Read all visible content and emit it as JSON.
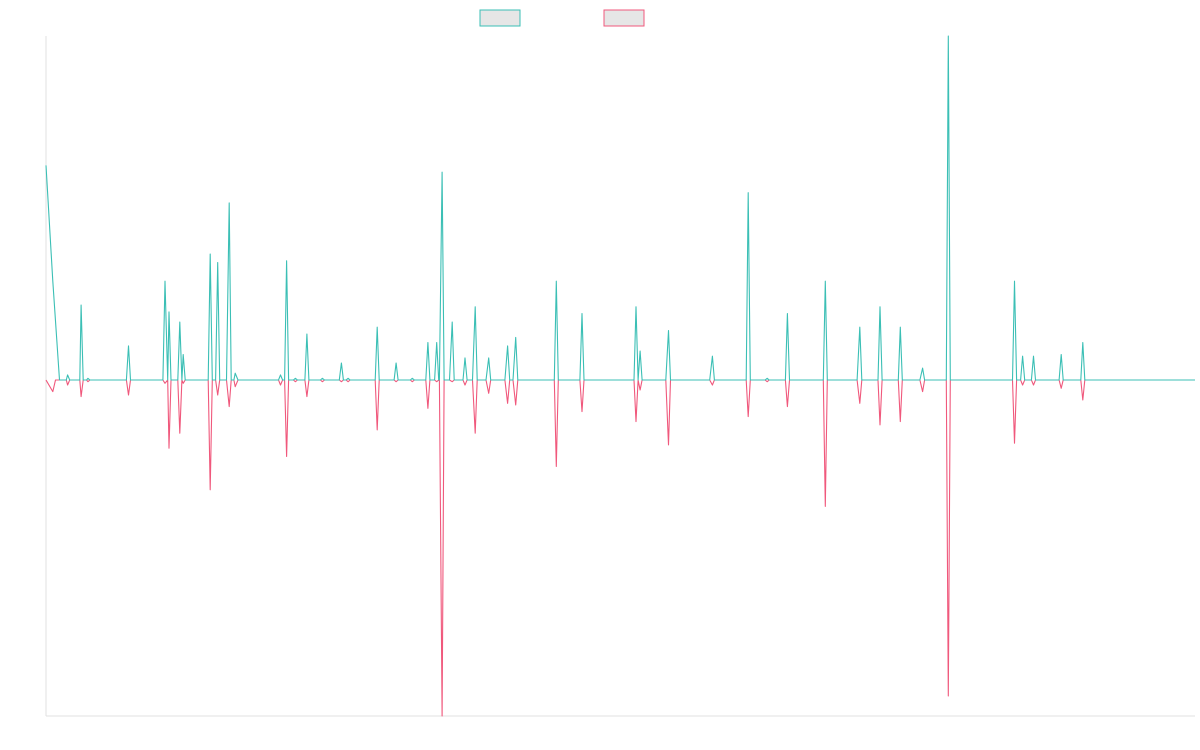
{
  "colors": {
    "series1": "#3bbfb5",
    "series2": "#f0587c",
    "legend_fill": "#e6e6e6",
    "axis": "#e0e0e0",
    "background": "#ffffff"
  },
  "legend": {
    "placement": "top-center",
    "entries": [
      {
        "label": "",
        "color": "#3bbfb5"
      },
      {
        "label": "",
        "color": "#f0587c"
      }
    ]
  },
  "chart_data": {
    "type": "line",
    "title": "",
    "xlabel": "",
    "ylabel": "",
    "grid": false,
    "x_tick_labels": false,
    "y_tick_labels": false,
    "xlim": [
      0,
      170
    ],
    "ylim": [
      -100,
      100
    ],
    "series": [
      {
        "color": "#3bbfb5",
        "points": [
          [
            0,
            63
          ],
          [
            1,
            29
          ],
          [
            2,
            0
          ],
          [
            3,
            0
          ],
          [
            3.2,
            1.5
          ],
          [
            3.5,
            0
          ],
          [
            5,
            0
          ],
          [
            5.2,
            22
          ],
          [
            5.5,
            0
          ],
          [
            6,
            0
          ],
          [
            6.2,
            0.5
          ],
          [
            6.5,
            0
          ],
          [
            11.9,
            0
          ],
          [
            12.2,
            10
          ],
          [
            12.5,
            0
          ],
          [
            17.3,
            0
          ],
          [
            17.6,
            29
          ],
          [
            18,
            0
          ],
          [
            18.2,
            20
          ],
          [
            18.5,
            0
          ],
          [
            19.5,
            0
          ],
          [
            19.8,
            17
          ],
          [
            20.1,
            0
          ],
          [
            20.3,
            7.5
          ],
          [
            20.6,
            0
          ],
          [
            24,
            0
          ],
          [
            24.3,
            37
          ],
          [
            24.6,
            0
          ],
          [
            25.1,
            0
          ],
          [
            25.4,
            34.5
          ],
          [
            25.7,
            0
          ],
          [
            26.7,
            0
          ],
          [
            27.1,
            52
          ],
          [
            27.4,
            0
          ],
          [
            27.8,
            0
          ],
          [
            28,
            2
          ],
          [
            28.4,
            0
          ],
          [
            34.4,
            0
          ],
          [
            34.7,
            1.5
          ],
          [
            35,
            0
          ],
          [
            35.3,
            0
          ],
          [
            35.6,
            35
          ],
          [
            35.9,
            0
          ],
          [
            36.6,
            0
          ],
          [
            36.9,
            0.5
          ],
          [
            37.2,
            0
          ],
          [
            38.3,
            0
          ],
          [
            38.6,
            13.5
          ],
          [
            38.9,
            0
          ],
          [
            40.6,
            0
          ],
          [
            40.9,
            0.5
          ],
          [
            41.2,
            0
          ],
          [
            43.4,
            0
          ],
          [
            43.7,
            5
          ],
          [
            44,
            0
          ],
          [
            44.4,
            0
          ],
          [
            44.7,
            0.5
          ],
          [
            45,
            0
          ],
          [
            48.7,
            0
          ],
          [
            49,
            15.5
          ],
          [
            49.3,
            0
          ],
          [
            51.5,
            0
          ],
          [
            51.8,
            5
          ],
          [
            52.1,
            0
          ],
          [
            53.9,
            0
          ],
          [
            54.2,
            0.5
          ],
          [
            54.5,
            0
          ],
          [
            56.2,
            0
          ],
          [
            56.5,
            11
          ],
          [
            56.8,
            0
          ],
          [
            57.5,
            0
          ],
          [
            57.8,
            11
          ],
          [
            58.1,
            0
          ],
          [
            58.2,
            0
          ],
          [
            58.6,
            61
          ],
          [
            58.9,
            0
          ],
          [
            59.7,
            0
          ],
          [
            60.1,
            17
          ],
          [
            60.4,
            0
          ],
          [
            61.7,
            0
          ],
          [
            62,
            6.5
          ],
          [
            62.3,
            0
          ],
          [
            63.1,
            0
          ],
          [
            63.5,
            21.5
          ],
          [
            63.8,
            0
          ],
          [
            65.1,
            0
          ],
          [
            65.5,
            6.5
          ],
          [
            65.8,
            0
          ],
          [
            67.9,
            0
          ],
          [
            68.3,
            10
          ],
          [
            68.6,
            0
          ],
          [
            69.1,
            0
          ],
          [
            69.5,
            12.5
          ],
          [
            69.8,
            0
          ],
          [
            75.2,
            0
          ],
          [
            75.5,
            29
          ],
          [
            75.8,
            0
          ],
          [
            79,
            0
          ],
          [
            79.3,
            19.5
          ],
          [
            79.6,
            0
          ],
          [
            87,
            0
          ],
          [
            87.3,
            21.5
          ],
          [
            87.6,
            0
          ],
          [
            87.9,
            8.5
          ],
          [
            88.2,
            0
          ],
          [
            91.7,
            0
          ],
          [
            92.1,
            14.5
          ],
          [
            92.4,
            0
          ],
          [
            98.2,
            0
          ],
          [
            98.6,
            7
          ],
          [
            98.9,
            0
          ],
          [
            106.4,
            0
          ],
          [
            106.7,
            0.5
          ],
          [
            107,
            0
          ],
          [
            103.6,
            0
          ],
          [
            103.9,
            55
          ],
          [
            104.2,
            0
          ],
          [
            109.4,
            0
          ],
          [
            109.7,
            19.5
          ],
          [
            110,
            0
          ],
          [
            115,
            0
          ],
          [
            115.3,
            29
          ],
          [
            115.6,
            0
          ],
          [
            120,
            0
          ],
          [
            120.4,
            15.5
          ],
          [
            120.7,
            0
          ],
          [
            123.1,
            0
          ],
          [
            123.4,
            21.5
          ],
          [
            123.7,
            0
          ],
          [
            126.1,
            0
          ],
          [
            126.4,
            15.5
          ],
          [
            126.7,
            0
          ],
          [
            129.3,
            0
          ],
          [
            129.7,
            3.5
          ],
          [
            130,
            0
          ],
          [
            133.2,
            0
          ],
          [
            133.5,
            101
          ],
          [
            133.8,
            0
          ],
          [
            143,
            0
          ],
          [
            143.3,
            29
          ],
          [
            143.6,
            0
          ],
          [
            144.2,
            0
          ],
          [
            144.5,
            7
          ],
          [
            144.8,
            0
          ],
          [
            145.8,
            0
          ],
          [
            146.1,
            7
          ],
          [
            146.4,
            0
          ],
          [
            149.9,
            0
          ],
          [
            150.2,
            7.5
          ],
          [
            150.5,
            0
          ],
          [
            153.1,
            0
          ],
          [
            153.4,
            11
          ],
          [
            153.7,
            0
          ],
          [
            170,
            0
          ]
        ]
      },
      {
        "color": "#f0587c",
        "points": [
          [
            0,
            0
          ],
          [
            1,
            -3.5
          ],
          [
            1.4,
            0
          ],
          [
            3,
            0
          ],
          [
            3.2,
            -1.5
          ],
          [
            3.5,
            0
          ],
          [
            5,
            0
          ],
          [
            5.2,
            -5
          ],
          [
            5.5,
            0
          ],
          [
            6,
            0
          ],
          [
            6.2,
            -0.5
          ],
          [
            6.5,
            0
          ],
          [
            11.9,
            0
          ],
          [
            12.2,
            -4.5
          ],
          [
            12.5,
            0
          ],
          [
            17.3,
            0
          ],
          [
            17.6,
            -1
          ],
          [
            18,
            0
          ],
          [
            18.2,
            -20.5
          ],
          [
            18.5,
            0
          ],
          [
            19.5,
            0
          ],
          [
            19.8,
            -16
          ],
          [
            20.1,
            0
          ],
          [
            20.3,
            -1
          ],
          [
            20.6,
            0
          ],
          [
            24,
            0
          ],
          [
            24.3,
            -33
          ],
          [
            24.6,
            0
          ],
          [
            25.1,
            0
          ],
          [
            25.4,
            -4.5
          ],
          [
            25.7,
            0
          ],
          [
            26.7,
            0
          ],
          [
            27.1,
            -8
          ],
          [
            27.4,
            0
          ],
          [
            27.8,
            0
          ],
          [
            28,
            -2
          ],
          [
            28.4,
            0
          ],
          [
            34.4,
            0
          ],
          [
            34.7,
            -1.5
          ],
          [
            35,
            0
          ],
          [
            35.3,
            0
          ],
          [
            35.6,
            -23
          ],
          [
            35.9,
            0
          ],
          [
            36.6,
            0
          ],
          [
            36.9,
            -0.5
          ],
          [
            37.2,
            0
          ],
          [
            38.3,
            0
          ],
          [
            38.6,
            -5
          ],
          [
            38.9,
            0
          ],
          [
            40.6,
            0
          ],
          [
            40.9,
            -0.5
          ],
          [
            41.2,
            0
          ],
          [
            43.4,
            0
          ],
          [
            43.7,
            -0.5
          ],
          [
            44,
            0
          ],
          [
            44.4,
            0
          ],
          [
            44.7,
            -0.5
          ],
          [
            45,
            0
          ],
          [
            48.7,
            0
          ],
          [
            49,
            -15
          ],
          [
            49.3,
            0
          ],
          [
            51.5,
            0
          ],
          [
            51.8,
            -0.5
          ],
          [
            52.1,
            0
          ],
          [
            53.9,
            0
          ],
          [
            54.2,
            -0.5
          ],
          [
            54.5,
            0
          ],
          [
            56.2,
            0
          ],
          [
            56.5,
            -8.5
          ],
          [
            56.8,
            0
          ],
          [
            57.5,
            0
          ],
          [
            57.8,
            -0.5
          ],
          [
            58.1,
            0
          ],
          [
            58.2,
            0
          ],
          [
            58.6,
            -101
          ],
          [
            58.9,
            0
          ],
          [
            59.7,
            0
          ],
          [
            60.1,
            -0.5
          ],
          [
            60.4,
            0
          ],
          [
            61.7,
            0
          ],
          [
            62,
            -1.5
          ],
          [
            62.3,
            0
          ],
          [
            63.1,
            0
          ],
          [
            63.5,
            -16
          ],
          [
            63.8,
            0
          ],
          [
            65.1,
            0
          ],
          [
            65.5,
            -4
          ],
          [
            65.8,
            0
          ],
          [
            67.9,
            0
          ],
          [
            68.3,
            -7
          ],
          [
            68.6,
            0
          ],
          [
            69.1,
            0
          ],
          [
            69.5,
            -7.5
          ],
          [
            69.8,
            0
          ],
          [
            75.2,
            0
          ],
          [
            75.5,
            -26
          ],
          [
            75.8,
            0
          ],
          [
            79,
            0
          ],
          [
            79.3,
            -9.5
          ],
          [
            79.6,
            0
          ],
          [
            87,
            0
          ],
          [
            87.3,
            -12.5
          ],
          [
            87.6,
            0
          ],
          [
            87.9,
            -3
          ],
          [
            88.2,
            0
          ],
          [
            91.7,
            0
          ],
          [
            92.1,
            -19.5
          ],
          [
            92.4,
            0
          ],
          [
            98.2,
            0
          ],
          [
            98.6,
            -1.5
          ],
          [
            98.9,
            0
          ],
          [
            103.6,
            0
          ],
          [
            103.9,
            -11
          ],
          [
            104.2,
            0
          ],
          [
            106.4,
            0
          ],
          [
            106.7,
            -0.5
          ],
          [
            107,
            0
          ],
          [
            109.4,
            0
          ],
          [
            109.7,
            -8
          ],
          [
            110,
            0
          ],
          [
            115,
            0
          ],
          [
            115.3,
            -38
          ],
          [
            115.6,
            0
          ],
          [
            120,
            0
          ],
          [
            120.4,
            -7
          ],
          [
            120.7,
            0
          ],
          [
            123.1,
            0
          ],
          [
            123.4,
            -13.5
          ],
          [
            123.7,
            0
          ],
          [
            126.1,
            0
          ],
          [
            126.4,
            -12.5
          ],
          [
            126.7,
            0
          ],
          [
            129.3,
            0
          ],
          [
            129.7,
            -3.5
          ],
          [
            130,
            0
          ],
          [
            133.2,
            0
          ],
          [
            133.5,
            -95
          ],
          [
            133.8,
            0
          ],
          [
            143,
            0
          ],
          [
            143.3,
            -19
          ],
          [
            143.6,
            0
          ],
          [
            144.2,
            0
          ],
          [
            144.5,
            -1.5
          ],
          [
            144.8,
            0
          ],
          [
            145.8,
            0
          ],
          [
            146.1,
            -1.5
          ],
          [
            146.4,
            0
          ],
          [
            149.9,
            0
          ],
          [
            150.2,
            -2.5
          ],
          [
            150.5,
            0
          ],
          [
            153.1,
            0
          ],
          [
            153.4,
            -6
          ],
          [
            153.7,
            0
          ],
          [
            170,
            0
          ]
        ]
      }
    ]
  }
}
